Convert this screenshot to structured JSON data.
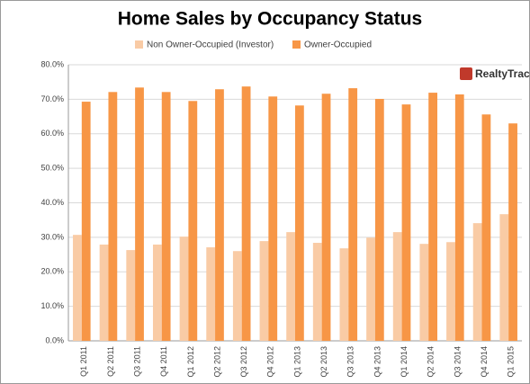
{
  "chart_data": {
    "type": "bar",
    "title": "Home Sales by Occupancy Status",
    "logo": "RealtyTrac",
    "categories": [
      "Q1 2011",
      "Q2 2011",
      "Q3 2011",
      "Q4 2011",
      "Q1 2012",
      "Q2 2012",
      "Q3 2012",
      "Q4 2012",
      "Q1 2013",
      "Q2 2013",
      "Q3 2013",
      "Q4 2013",
      "Q1 2014",
      "Q2 2014",
      "Q3 2014",
      "Q4 2014",
      "Q1 2015"
    ],
    "series": [
      {
        "name": "Non Owner-Occupied (Investor)",
        "color": "#f9cba5",
        "values": [
          30.7,
          27.9,
          26.3,
          27.9,
          30.2,
          27.1,
          26.0,
          28.9,
          31.5,
          28.4,
          26.8,
          29.9,
          31.5,
          28.1,
          28.6,
          34.1,
          36.7
        ]
      },
      {
        "name": "Owner-Occupied",
        "color": "#f79646",
        "values": [
          69.3,
          72.1,
          73.4,
          72.1,
          69.5,
          72.9,
          73.7,
          70.8,
          68.2,
          71.6,
          73.2,
          70.1,
          68.5,
          71.9,
          71.4,
          65.6,
          63.0
        ]
      }
    ],
    "ylim": [
      0,
      80
    ],
    "yticks": [
      {
        "value": 0,
        "label": "0.0%"
      },
      {
        "value": 10,
        "label": "10.0%"
      },
      {
        "value": 20,
        "label": "20.0%"
      },
      {
        "value": 30,
        "label": "30.0%"
      },
      {
        "value": 40,
        "label": "40.0%"
      },
      {
        "value": 50,
        "label": "50.0%"
      },
      {
        "value": 60,
        "label": "60.0%"
      },
      {
        "value": 70,
        "label": "70.0%"
      },
      {
        "value": 80,
        "label": "80.0%"
      }
    ],
    "grid": true,
    "legend": "top"
  }
}
